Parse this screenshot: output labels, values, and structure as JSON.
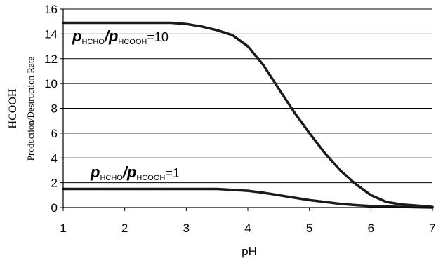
{
  "chart_data": {
    "type": "line",
    "title": "",
    "xlabel": "pH",
    "ylabel_line1": "HCOOH",
    "ylabel_line2": "Production/Destruction Rate",
    "xlim": [
      1,
      7
    ],
    "ylim": [
      0,
      16
    ],
    "x_ticks": [
      "1",
      "2",
      "3",
      "4",
      "5",
      "6",
      "7"
    ],
    "y_ticks": [
      "0",
      "2",
      "4",
      "6",
      "8",
      "10",
      "12",
      "14",
      "16"
    ],
    "grid": "horizontal",
    "series": [
      {
        "label_p1": "p",
        "label_sub1": "HCHO",
        "label_slash": "/",
        "label_p2": "p",
        "label_sub2": "HCOOH",
        "label_value": "=10",
        "x": [
          1,
          1.5,
          2,
          2.5,
          2.75,
          3,
          3.25,
          3.5,
          3.75,
          4,
          4.25,
          4.5,
          4.75,
          5,
          5.25,
          5.5,
          5.75,
          6,
          6.25,
          6.5,
          6.75,
          7
        ],
        "y": [
          14.9,
          14.9,
          14.9,
          14.9,
          14.9,
          14.8,
          14.6,
          14.3,
          13.9,
          13.0,
          11.5,
          9.6,
          7.7,
          6.0,
          4.4,
          3.0,
          1.9,
          1.0,
          0.45,
          0.25,
          0.15,
          0.05
        ]
      },
      {
        "label_p1": "p",
        "label_sub1": "HCHO",
        "label_slash": "/",
        "label_p2": "p",
        "label_sub2": "HCOOH",
        "label_value": "=1",
        "x": [
          1,
          1.5,
          2,
          2.5,
          3,
          3.5,
          3.75,
          4,
          4.25,
          4.5,
          4.75,
          5,
          5.25,
          5.5,
          5.75,
          6,
          6.5,
          7
        ],
        "y": [
          1.5,
          1.5,
          1.5,
          1.5,
          1.5,
          1.5,
          1.43,
          1.35,
          1.2,
          1.0,
          0.8,
          0.6,
          0.45,
          0.3,
          0.2,
          0.12,
          0.05,
          0.0
        ]
      }
    ]
  }
}
